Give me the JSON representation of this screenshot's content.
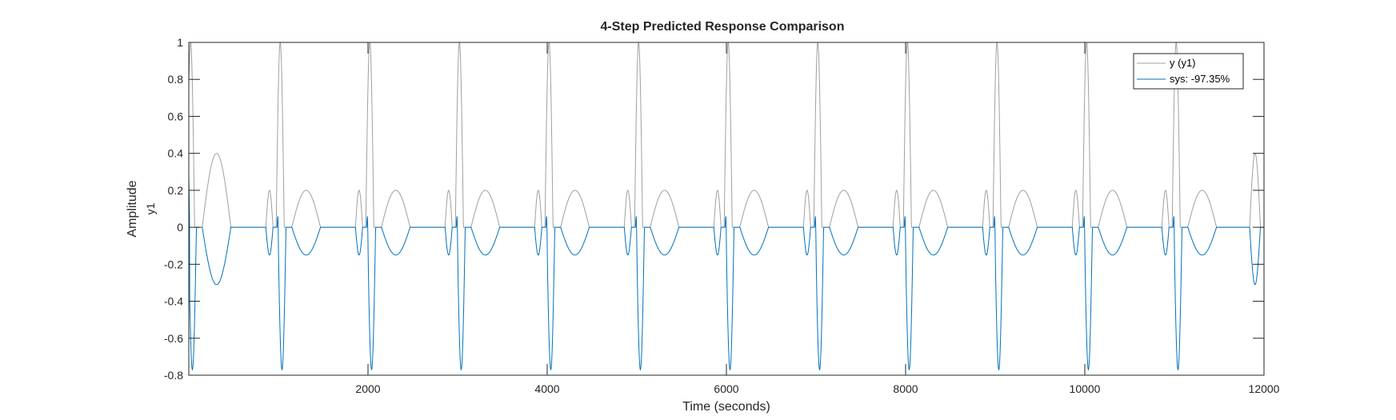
{
  "chart_data": {
    "type": "line",
    "title": "4-Step Predicted Response Comparison",
    "xlabel": "Time (seconds)",
    "ylabel": "Amplitude",
    "ylabel_output": "y1",
    "xlim": [
      0,
      12000
    ],
    "ylim": [
      -0.8,
      1
    ],
    "xticks": [
      2000,
      4000,
      6000,
      8000,
      10000,
      12000
    ],
    "yticks": [
      -0.8,
      -0.6,
      -0.4,
      -0.2,
      0,
      0.2,
      0.4,
      0.6,
      0.8,
      1
    ],
    "ytick_labels": [
      "-0.8",
      "-0.6",
      "-0.4",
      "-0.2",
      "0",
      "0.2",
      "0.4",
      "0.6",
      "0.8",
      "1"
    ],
    "grid": false,
    "legend_position": "top-right",
    "period": 1000,
    "series": [
      {
        "name": "y (y1)",
        "color": "#a0a0a0",
        "pattern": "per period: spike to 1 of width ~100 s centred at k·1000+20, half-sine hump of 0.2 from k·1000+150 to k·1000+470, small hump of 0.2 from k·1000−140 to k·1000−60; first period hump peaks at 0.4 (x≈320)",
        "key_points": [
          {
            "x": 20,
            "y": 1
          },
          {
            "x": 320,
            "y": 0.4
          },
          {
            "x": 900,
            "y": 0.2
          },
          {
            "x": 1020,
            "y": 1
          },
          {
            "x": 1310,
            "y": 0.2
          },
          {
            "x": 2020,
            "y": 1
          },
          {
            "x": 11900,
            "y": 0.4
          }
        ]
      },
      {
        "name": "sys: -97.35%",
        "color": "#0072bd",
        "pattern": "per period: negative spike to about -0.77 at k·1000+40, hump of about -0.15 from k·1000+150 to k·1000+470, small dip of -0.15 before each spike; first period hump reaches -0.31",
        "key_points": [
          {
            "x": 0,
            "y": 0.28
          },
          {
            "x": 40,
            "y": -0.77
          },
          {
            "x": 320,
            "y": -0.31
          },
          {
            "x": 900,
            "y": -0.15
          },
          {
            "x": 1040,
            "y": -0.77
          },
          {
            "x": 1310,
            "y": -0.15
          },
          {
            "x": 11900,
            "y": -0.31
          }
        ]
      }
    ]
  }
}
